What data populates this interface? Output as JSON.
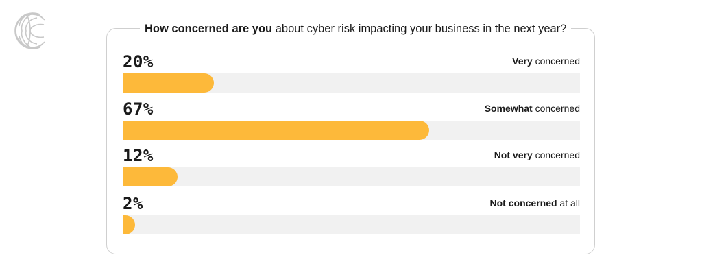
{
  "title": {
    "bold": "How concerned are you",
    "rest": " about cyber risk impacting your business in the next year?"
  },
  "chart_data": {
    "type": "bar",
    "orientation": "horizontal",
    "title": "How concerned are you about cyber risk impacting your business in the next year?",
    "unit": "%",
    "xlim": [
      0,
      100
    ],
    "categories": [
      "Very concerned",
      "Somewhat concerned",
      "Not very concerned",
      "Not concerned at all"
    ],
    "values": [
      20,
      67,
      12,
      2
    ],
    "rows": [
      {
        "value_label": "20%",
        "label_bold": "Very",
        "label_rest": " concerned",
        "value": 20
      },
      {
        "value_label": "67%",
        "label_bold": "Somewhat",
        "label_rest": " concerned",
        "value": 67
      },
      {
        "value_label": "12%",
        "label_bold": "Not very",
        "label_rest": " concerned",
        "value": 12
      },
      {
        "value_label": "2%",
        "label_bold": "Not concerned",
        "label_rest": " at all",
        "value": 2
      }
    ]
  },
  "colors": {
    "bar_fill": "#fdb93a",
    "bar_track": "#f1f1f1",
    "card_border": "#cfcfcf",
    "logo": "#c8c8c8"
  },
  "logo": {
    "icon": "c-logo-icon"
  }
}
